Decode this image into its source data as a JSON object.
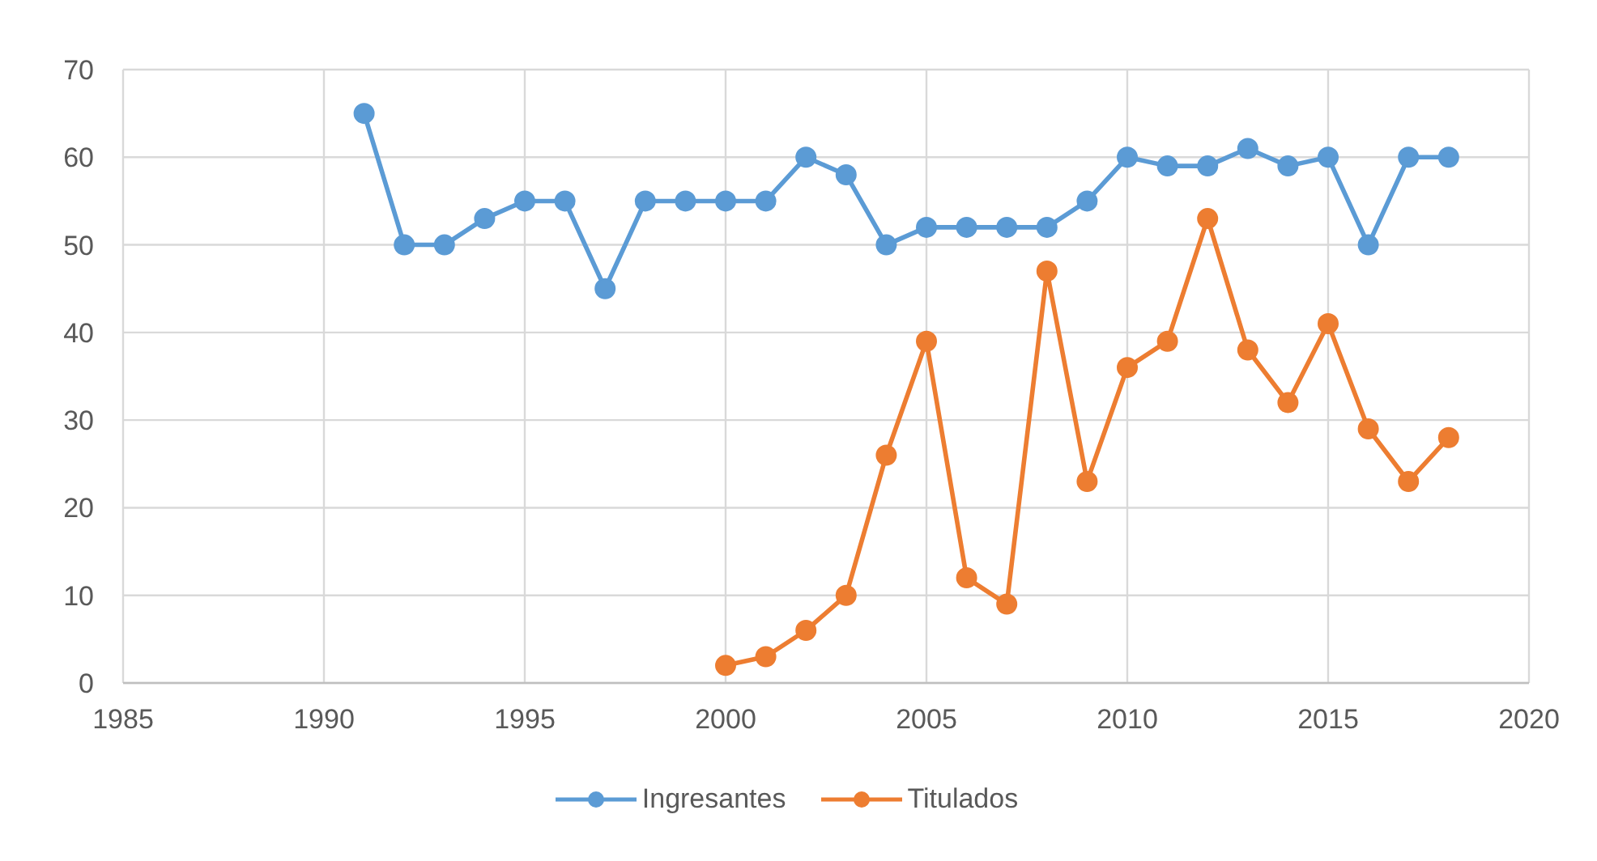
{
  "chart_data": {
    "type": "line",
    "series": [
      {
        "name": "Ingresantes",
        "color": "#5b9bd5",
        "x": [
          1991,
          1992,
          1993,
          1994,
          1995,
          1996,
          1997,
          1998,
          1999,
          2000,
          2001,
          2002,
          2003,
          2004,
          2005,
          2006,
          2007,
          2008,
          2009,
          2010,
          2011,
          2012,
          2013,
          2014,
          2015,
          2016,
          2017,
          2018
        ],
        "values": [
          65,
          50,
          50,
          53,
          55,
          55,
          45,
          55,
          55,
          55,
          55,
          60,
          58,
          50,
          52,
          52,
          52,
          52,
          55,
          60,
          59,
          59,
          61,
          59,
          60,
          50,
          60,
          60
        ]
      },
      {
        "name": "Titulados",
        "color": "#ed7d31",
        "x": [
          2000,
          2001,
          2002,
          2003,
          2004,
          2005,
          2006,
          2007,
          2008,
          2009,
          2010,
          2011,
          2012,
          2013,
          2014,
          2015,
          2016,
          2017,
          2018
        ],
        "values": [
          2,
          3,
          6,
          10,
          26,
          39,
          12,
          9,
          47,
          23,
          36,
          39,
          53,
          38,
          32,
          41,
          29,
          23,
          28
        ]
      }
    ],
    "xlim": [
      1985,
      2020
    ],
    "xticks": [
      1985,
      1990,
      1995,
      2000,
      2005,
      2010,
      2015,
      2020
    ],
    "ylim": [
      0,
      70
    ],
    "yticks": [
      0,
      10,
      20,
      30,
      40,
      50,
      60,
      70
    ],
    "grid": true,
    "legend": "bottom",
    "marker": "circle",
    "line_style": "solid"
  }
}
